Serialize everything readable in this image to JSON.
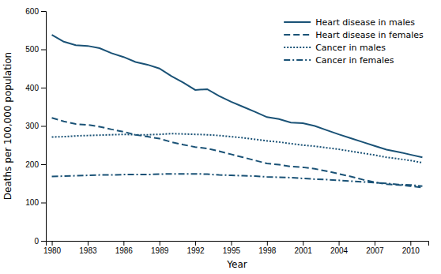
{
  "chart_data": {
    "type": "line",
    "xlabel": "Year",
    "ylabel": "Deaths per 100,000 population",
    "x": [
      1980,
      1981,
      1982,
      1983,
      1984,
      1985,
      1986,
      1987,
      1988,
      1989,
      1990,
      1991,
      1992,
      1993,
      1994,
      1995,
      1996,
      1997,
      1998,
      1999,
      2000,
      2001,
      2002,
      2003,
      2004,
      2005,
      2006,
      2007,
      2008,
      2009,
      2010,
      2011
    ],
    "series": [
      {
        "name": "Heart disease in males",
        "color": "#1a5276",
        "line_style": "solid",
        "values": [
          538,
          520,
          511,
          509,
          503,
          490,
          480,
          467,
          460,
          450,
          430,
          413,
          394,
          396,
          378,
          363,
          350,
          337,
          323,
          318,
          309,
          307,
          300,
          289,
          278,
          268,
          258,
          248,
          238,
          232,
          225,
          218
        ]
      },
      {
        "name": "Heart disease in females",
        "color": "#1a5276",
        "line_style": "dashed",
        "values": [
          321,
          312,
          305,
          303,
          298,
          291,
          285,
          277,
          272,
          267,
          258,
          251,
          245,
          241,
          234,
          226,
          218,
          210,
          202,
          199,
          194,
          192,
          188,
          182,
          175,
          168,
          160,
          153,
          148,
          146,
          143,
          139
        ]
      },
      {
        "name": "Cancer in males",
        "color": "#1a5276",
        "line_style": "dotted",
        "values": [
          271,
          272,
          274,
          275,
          276,
          277,
          278,
          277,
          277,
          278,
          280,
          279,
          278,
          277,
          275,
          272,
          269,
          265,
          261,
          258,
          254,
          250,
          247,
          243,
          239,
          234,
          229,
          224,
          218,
          214,
          210,
          204
        ]
      },
      {
        "name": "Cancer in females",
        "color": "#1a5276",
        "line_style": "dashdot",
        "values": [
          168,
          169,
          170,
          171,
          172,
          172,
          173,
          173,
          173,
          174,
          175,
          175,
          175,
          174,
          172,
          171,
          170,
          169,
          167,
          166,
          165,
          163,
          161,
          160,
          158,
          156,
          154,
          152,
          150,
          147,
          146,
          143
        ]
      }
    ],
    "xlim": [
      1979.5,
      2011.5
    ],
    "xticks": [
      1980,
      1983,
      1986,
      1989,
      1992,
      1995,
      1998,
      2001,
      2004,
      2007,
      2010
    ],
    "ylim": [
      0,
      600
    ],
    "yticks": [
      0,
      100,
      200,
      300,
      400,
      500,
      600
    ],
    "grid": false,
    "legend": "upper right"
  }
}
